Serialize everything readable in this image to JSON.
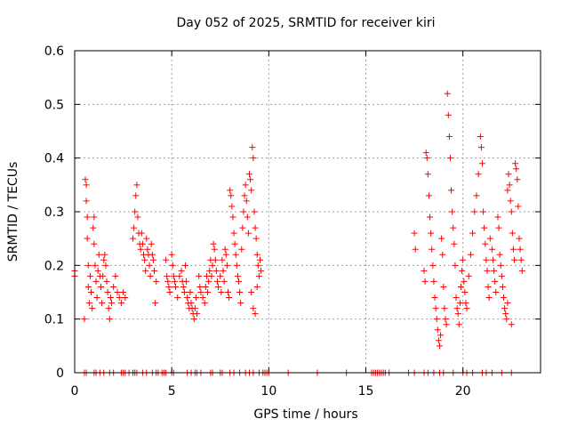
{
  "chart_data": {
    "type": "scatter",
    "title": "Day 052 of 2025, SRMTID for receiver kiri",
    "xlabel": "GPS time / hours",
    "ylabel": "SRMTID / TECUs",
    "xlim": [
      0,
      24
    ],
    "ylim": [
      0,
      0.6
    ],
    "xticks": [
      0,
      5,
      10,
      15,
      20
    ],
    "xtick_labels": [
      "0",
      "5",
      "10",
      "15",
      "20"
    ],
    "yticks": [
      0,
      0.1,
      0.2,
      0.3,
      0.4,
      0.5,
      0.6
    ],
    "ytick_labels": [
      "0",
      "0.1",
      "0.2",
      "0.3",
      "0.4",
      "0.5",
      "0.6"
    ],
    "grid": true,
    "marker": "+",
    "series": [
      {
        "name": "SRMTID",
        "color": "#ff0000",
        "points": [
          [
            0.0,
            0.19
          ],
          [
            0.0,
            0.18
          ],
          [
            0.5,
            0.1
          ],
          [
            0.55,
            0.36
          ],
          [
            0.6,
            0.35
          ],
          [
            0.6,
            0.32
          ],
          [
            0.65,
            0.29
          ],
          [
            0.65,
            0.25
          ],
          [
            0.7,
            0.2
          ],
          [
            0.7,
            0.16
          ],
          [
            0.75,
            0.13
          ],
          [
            0.8,
            0.18
          ],
          [
            0.85,
            0.15
          ],
          [
            0.9,
            0.12
          ],
          [
            0.95,
            0.27
          ],
          [
            1.0,
            0.29
          ],
          [
            1.0,
            0.24
          ],
          [
            1.05,
            0.2
          ],
          [
            1.1,
            0.17
          ],
          [
            1.15,
            0.14
          ],
          [
            1.2,
            0.19
          ],
          [
            1.25,
            0.22
          ],
          [
            1.3,
            0.18
          ],
          [
            1.35,
            0.16
          ],
          [
            1.4,
            0.13
          ],
          [
            1.45,
            0.18
          ],
          [
            1.5,
            0.21
          ],
          [
            1.55,
            0.22
          ],
          [
            1.6,
            0.2
          ],
          [
            1.65,
            0.17
          ],
          [
            1.7,
            0.15
          ],
          [
            1.75,
            0.12
          ],
          [
            1.8,
            0.1
          ],
          [
            1.85,
            0.14
          ],
          [
            1.9,
            0.13
          ],
          [
            2.0,
            0.16
          ],
          [
            2.1,
            0.18
          ],
          [
            2.2,
            0.15
          ],
          [
            2.3,
            0.14
          ],
          [
            2.4,
            0.13
          ],
          [
            2.5,
            0.15
          ],
          [
            2.6,
            0.14
          ],
          [
            3.0,
            0.25
          ],
          [
            3.05,
            0.27
          ],
          [
            3.1,
            0.3
          ],
          [
            3.15,
            0.33
          ],
          [
            3.2,
            0.35
          ],
          [
            3.25,
            0.29
          ],
          [
            3.3,
            0.26
          ],
          [
            3.35,
            0.24
          ],
          [
            3.4,
            0.23
          ],
          [
            3.45,
            0.26
          ],
          [
            3.5,
            0.24
          ],
          [
            3.55,
            0.22
          ],
          [
            3.6,
            0.21
          ],
          [
            3.65,
            0.19
          ],
          [
            3.7,
            0.25
          ],
          [
            3.75,
            0.23
          ],
          [
            3.8,
            0.22
          ],
          [
            3.85,
            0.2
          ],
          [
            3.9,
            0.18
          ],
          [
            3.95,
            0.24
          ],
          [
            4.0,
            0.22
          ],
          [
            4.05,
            0.21
          ],
          [
            4.1,
            0.19
          ],
          [
            4.15,
            0.13
          ],
          [
            4.2,
            0.17
          ],
          [
            4.7,
            0.21
          ],
          [
            4.75,
            0.18
          ],
          [
            4.8,
            0.17
          ],
          [
            4.85,
            0.16
          ],
          [
            4.9,
            0.15
          ],
          [
            5.0,
            0.22
          ],
          [
            5.05,
            0.2
          ],
          [
            5.1,
            0.18
          ],
          [
            5.15,
            0.17
          ],
          [
            5.2,
            0.16
          ],
          [
            5.3,
            0.14
          ],
          [
            5.4,
            0.18
          ],
          [
            5.5,
            0.19
          ],
          [
            5.55,
            0.17
          ],
          [
            5.6,
            0.16
          ],
          [
            5.65,
            0.15
          ],
          [
            5.7,
            0.2
          ],
          [
            5.75,
            0.17
          ],
          [
            5.8,
            0.14
          ],
          [
            5.85,
            0.13
          ],
          [
            5.9,
            0.12
          ],
          [
            5.95,
            0.15
          ],
          [
            6.0,
            0.13
          ],
          [
            6.05,
            0.12
          ],
          [
            6.1,
            0.11
          ],
          [
            6.15,
            0.1
          ],
          [
            6.2,
            0.12
          ],
          [
            6.25,
            0.14
          ],
          [
            6.3,
            0.11
          ],
          [
            6.4,
            0.18
          ],
          [
            6.45,
            0.16
          ],
          [
            6.5,
            0.15
          ],
          [
            6.6,
            0.14
          ],
          [
            6.7,
            0.13
          ],
          [
            6.75,
            0.16
          ],
          [
            6.8,
            0.18
          ],
          [
            6.85,
            0.15
          ],
          [
            6.9,
            0.17
          ],
          [
            6.95,
            0.19
          ],
          [
            7.0,
            0.21
          ],
          [
            7.05,
            0.18
          ],
          [
            7.1,
            0.2
          ],
          [
            7.15,
            0.24
          ],
          [
            7.2,
            0.23
          ],
          [
            7.25,
            0.21
          ],
          [
            7.3,
            0.19
          ],
          [
            7.35,
            0.17
          ],
          [
            7.4,
            0.16
          ],
          [
            7.5,
            0.18
          ],
          [
            7.55,
            0.15
          ],
          [
            7.6,
            0.21
          ],
          [
            7.65,
            0.19
          ],
          [
            7.7,
            0.17
          ],
          [
            7.75,
            0.23
          ],
          [
            7.8,
            0.22
          ],
          [
            7.85,
            0.2
          ],
          [
            7.9,
            0.15
          ],
          [
            7.95,
            0.14
          ],
          [
            8.0,
            0.34
          ],
          [
            8.05,
            0.33
          ],
          [
            8.1,
            0.31
          ],
          [
            8.15,
            0.29
          ],
          [
            8.2,
            0.26
          ],
          [
            8.25,
            0.24
          ],
          [
            8.3,
            0.22
          ],
          [
            8.35,
            0.2
          ],
          [
            8.4,
            0.18
          ],
          [
            8.45,
            0.17
          ],
          [
            8.5,
            0.15
          ],
          [
            8.55,
            0.13
          ],
          [
            8.6,
            0.23
          ],
          [
            8.65,
            0.27
          ],
          [
            8.7,
            0.3
          ],
          [
            8.75,
            0.33
          ],
          [
            8.8,
            0.35
          ],
          [
            8.85,
            0.32
          ],
          [
            8.9,
            0.29
          ],
          [
            8.95,
            0.26
          ],
          [
            9.0,
            0.37
          ],
          [
            9.05,
            0.36
          ],
          [
            9.1,
            0.34
          ],
          [
            9.15,
            0.42
          ],
          [
            9.2,
            0.4
          ],
          [
            9.25,
            0.3
          ],
          [
            9.3,
            0.27
          ],
          [
            9.35,
            0.25
          ],
          [
            9.4,
            0.22
          ],
          [
            9.45,
            0.2
          ],
          [
            9.5,
            0.18
          ],
          [
            9.55,
            0.21
          ],
          [
            9.6,
            0.19
          ],
          [
            9.2,
            0.12
          ],
          [
            9.3,
            0.11
          ],
          [
            9.4,
            0.16
          ],
          [
            9.1,
            0.15
          ],
          [
            17.5,
            0.26
          ],
          [
            17.55,
            0.23
          ],
          [
            18.0,
            0.19
          ],
          [
            18.05,
            0.17
          ],
          [
            18.1,
            0.41
          ],
          [
            18.15,
            0.4
          ],
          [
            18.2,
            0.37
          ],
          [
            18.25,
            0.33
          ],
          [
            18.3,
            0.29
          ],
          [
            18.35,
            0.26
          ],
          [
            18.4,
            0.23
          ],
          [
            18.45,
            0.2
          ],
          [
            18.5,
            0.17
          ],
          [
            18.55,
            0.14
          ],
          [
            18.6,
            0.12
          ],
          [
            18.65,
            0.1
          ],
          [
            18.7,
            0.08
          ],
          [
            18.75,
            0.06
          ],
          [
            18.8,
            0.05
          ],
          [
            18.85,
            0.07
          ],
          [
            18.9,
            0.25
          ],
          [
            18.95,
            0.22
          ],
          [
            19.0,
            0.16
          ],
          [
            19.05,
            0.12
          ],
          [
            19.1,
            0.1
          ],
          [
            19.15,
            0.09
          ],
          [
            19.2,
            0.52
          ],
          [
            19.25,
            0.48
          ],
          [
            19.3,
            0.44
          ],
          [
            19.35,
            0.4
          ],
          [
            19.4,
            0.34
          ],
          [
            19.45,
            0.3
          ],
          [
            19.5,
            0.27
          ],
          [
            19.55,
            0.24
          ],
          [
            19.6,
            0.2
          ],
          [
            19.65,
            0.14
          ],
          [
            19.7,
            0.12
          ],
          [
            19.75,
            0.11
          ],
          [
            19.8,
            0.09
          ],
          [
            19.85,
            0.13
          ],
          [
            19.9,
            0.16
          ],
          [
            19.95,
            0.19
          ],
          [
            20.0,
            0.21
          ],
          [
            20.05,
            0.17
          ],
          [
            20.1,
            0.15
          ],
          [
            20.15,
            0.13
          ],
          [
            20.2,
            0.12
          ],
          [
            20.3,
            0.18
          ],
          [
            20.4,
            0.22
          ],
          [
            20.5,
            0.26
          ],
          [
            20.6,
            0.3
          ],
          [
            20.7,
            0.33
          ],
          [
            20.8,
            0.37
          ],
          [
            20.9,
            0.44
          ],
          [
            20.95,
            0.42
          ],
          [
            21.0,
            0.39
          ],
          [
            21.05,
            0.3
          ],
          [
            21.1,
            0.27
          ],
          [
            21.15,
            0.24
          ],
          [
            21.2,
            0.21
          ],
          [
            21.25,
            0.19
          ],
          [
            21.3,
            0.16
          ],
          [
            21.35,
            0.14
          ],
          [
            21.4,
            0.25
          ],
          [
            21.5,
            0.23
          ],
          [
            21.55,
            0.21
          ],
          [
            21.6,
            0.19
          ],
          [
            21.65,
            0.17
          ],
          [
            21.7,
            0.15
          ],
          [
            21.8,
            0.29
          ],
          [
            21.85,
            0.27
          ],
          [
            21.9,
            0.22
          ],
          [
            21.95,
            0.2
          ],
          [
            22.0,
            0.18
          ],
          [
            22.05,
            0.16
          ],
          [
            22.1,
            0.14
          ],
          [
            22.15,
            0.12
          ],
          [
            22.2,
            0.11
          ],
          [
            22.25,
            0.1
          ],
          [
            22.3,
            0.34
          ],
          [
            22.35,
            0.37
          ],
          [
            22.4,
            0.35
          ],
          [
            22.45,
            0.32
          ],
          [
            22.5,
            0.3
          ],
          [
            22.55,
            0.26
          ],
          [
            22.6,
            0.23
          ],
          [
            22.65,
            0.21
          ],
          [
            22.7,
            0.39
          ],
          [
            22.75,
            0.38
          ],
          [
            22.8,
            0.36
          ],
          [
            22.85,
            0.31
          ],
          [
            22.9,
            0.25
          ],
          [
            22.95,
            0.23
          ],
          [
            23.0,
            0.21
          ],
          [
            23.05,
            0.19
          ],
          [
            22.5,
            0.09
          ],
          [
            22.3,
            0.13
          ]
        ],
        "zero_points": [
          0.5,
          0.6,
          1.0,
          1.1,
          1.3,
          1.5,
          1.8,
          2.0,
          2.4,
          2.5,
          2.6,
          2.8,
          3.0,
          3.1,
          3.2,
          3.5,
          3.7,
          4.0,
          4.2,
          4.3,
          4.5,
          4.6,
          4.7,
          5.0,
          5.1,
          5.8,
          6.0,
          6.2,
          6.3,
          6.5,
          7.0,
          7.1,
          7.5,
          7.6,
          8.0,
          8.2,
          8.5,
          8.8,
          9.0,
          9.2,
          9.5,
          9.7,
          9.8,
          9.9,
          10.0,
          11.0,
          12.5,
          14.0,
          15.3,
          15.4,
          15.5,
          15.6,
          15.7,
          15.8,
          15.9,
          16.0,
          16.2,
          17.2,
          17.5,
          18.0,
          18.2,
          18.5,
          18.8,
          19.0,
          19.5,
          20.0,
          20.2,
          20.5,
          21.0,
          21.2,
          21.5,
          22.0,
          22.5
        ]
      }
    ]
  }
}
